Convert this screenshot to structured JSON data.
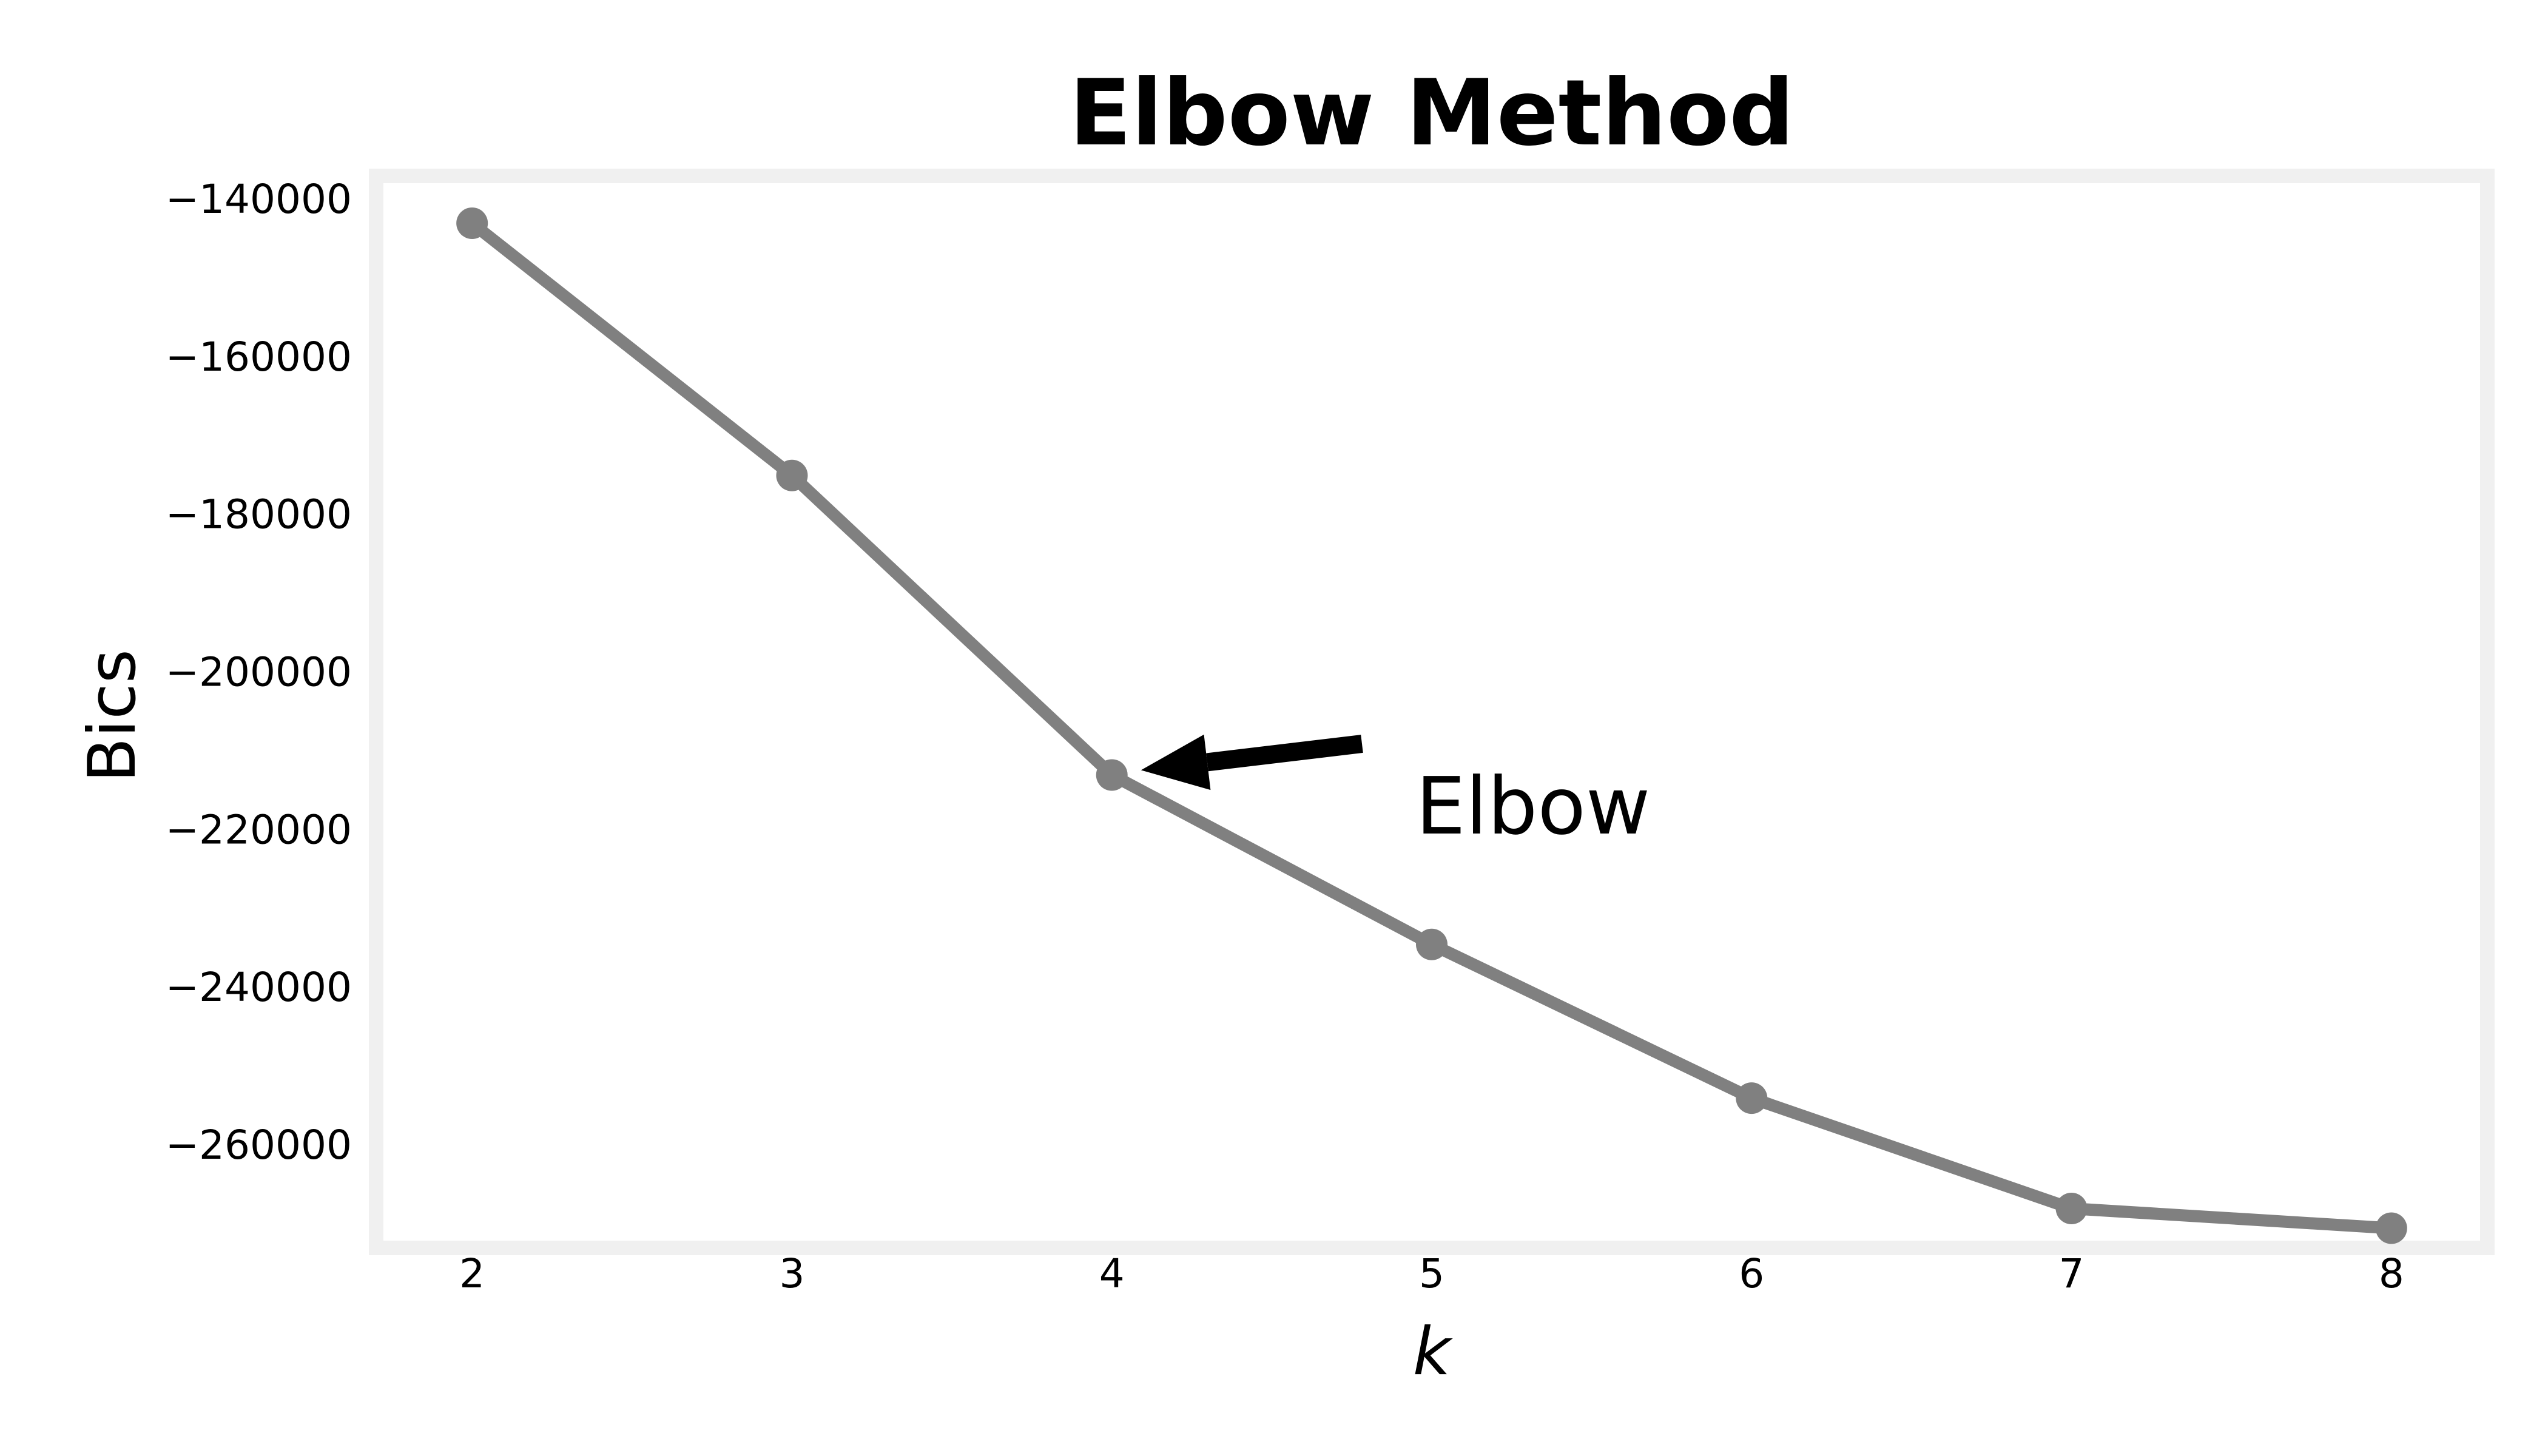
{
  "chart_data": {
    "type": "line",
    "title": "Elbow Method",
    "xlabel": "k",
    "ylabel": "Bics",
    "x": [
      2,
      3,
      4,
      5,
      6,
      7,
      8
    ],
    "series": [
      {
        "values": [
          -143000,
          -175000,
          -213000,
          -234500,
          -254000,
          -268000,
          -270500
        ]
      }
    ],
    "xticks": [
      2,
      3,
      4,
      5,
      6,
      7,
      8
    ],
    "yticks": [
      -140000,
      -160000,
      -180000,
      -200000,
      -220000,
      -240000,
      -260000
    ],
    "xlim": [
      1.7,
      8.3
    ],
    "ylim": [
      -273000,
      -137000
    ],
    "grid": false,
    "colors": {
      "line": "#808080",
      "frame": "#f0f0f0",
      "arrow": "#000000"
    },
    "annotation": {
      "text": "Elbow",
      "point": {
        "x": 4,
        "y": -213000
      },
      "text_at": {
        "x": 4.95,
        "y": -217500
      }
    }
  }
}
